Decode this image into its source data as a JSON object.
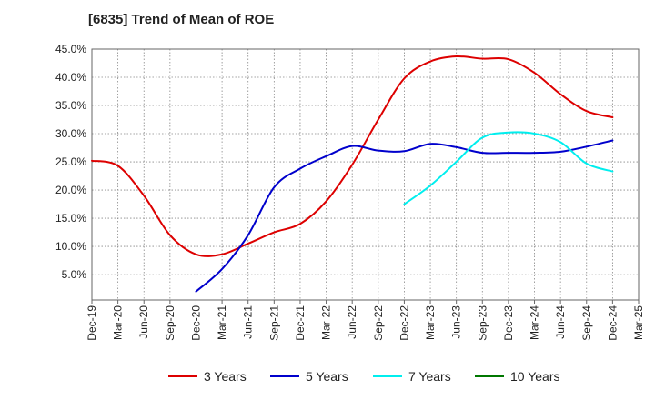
{
  "chart_data": {
    "type": "line",
    "title": "[6835]  Trend of Mean of ROE",
    "xlabel": "",
    "ylabel": "",
    "x_ticks": [
      "Dec-19",
      "Mar-20",
      "Jun-20",
      "Sep-20",
      "Dec-20",
      "Mar-21",
      "Jun-21",
      "Sep-21",
      "Dec-21",
      "Mar-22",
      "Jun-22",
      "Sep-22",
      "Dec-22",
      "Mar-23",
      "Jun-23",
      "Sep-23",
      "Dec-23",
      "Mar-24",
      "Jun-24",
      "Sep-24",
      "Dec-24",
      "Mar-25"
    ],
    "y_ticks": [
      "5.0%",
      "10.0%",
      "15.0%",
      "20.0%",
      "25.0%",
      "30.0%",
      "35.0%",
      "40.0%",
      "45.0%"
    ],
    "y_tick_values": [
      5,
      10,
      15,
      20,
      25,
      30,
      35,
      40,
      45
    ],
    "ylim": [
      0.5,
      45
    ],
    "grid": true,
    "legend_position": "bottom",
    "series": [
      {
        "name": "3 Years",
        "color": "#dd0000",
        "x": [
          "Dec-19",
          "Mar-20",
          "Jun-20",
          "Sep-20",
          "Dec-20",
          "Mar-21",
          "Jun-21",
          "Sep-21",
          "Dec-21",
          "Mar-22",
          "Jun-22",
          "Sep-22",
          "Dec-22",
          "Mar-23",
          "Jun-23",
          "Sep-23",
          "Dec-23",
          "Mar-24",
          "Jun-24",
          "Sep-24",
          "Dec-24"
        ],
        "values": [
          25.2,
          24.3,
          19.0,
          12.0,
          8.6,
          8.6,
          10.5,
          12.5,
          14.0,
          18.0,
          24.5,
          32.5,
          39.8,
          42.8,
          43.7,
          43.3,
          43.2,
          40.8,
          37.0,
          34.0,
          32.9
        ]
      },
      {
        "name": "5 Years",
        "color": "#0000cc",
        "x": [
          "Dec-20",
          "Mar-21",
          "Jun-21",
          "Sep-21",
          "Dec-21",
          "Mar-22",
          "Jun-22",
          "Sep-22",
          "Dec-22",
          "Mar-23",
          "Jun-23",
          "Sep-23",
          "Dec-23",
          "Mar-24",
          "Jun-24",
          "Sep-24",
          "Dec-24"
        ],
        "values": [
          2.0,
          6.0,
          12.0,
          20.5,
          23.8,
          26.0,
          27.8,
          27.0,
          26.9,
          28.2,
          27.6,
          26.6,
          26.6,
          26.6,
          26.8,
          27.7,
          28.8
        ]
      },
      {
        "name": "7 Years",
        "color": "#00eeee",
        "x": [
          "Dec-22",
          "Mar-23",
          "Jun-23",
          "Sep-23",
          "Dec-23",
          "Mar-24",
          "Jun-24",
          "Sep-24",
          "Dec-24"
        ],
        "values": [
          17.5,
          20.8,
          25.0,
          29.3,
          30.2,
          30.0,
          28.5,
          24.7,
          23.3
        ]
      },
      {
        "name": "10 Years",
        "color": "#007700",
        "x": [],
        "values": []
      }
    ]
  }
}
